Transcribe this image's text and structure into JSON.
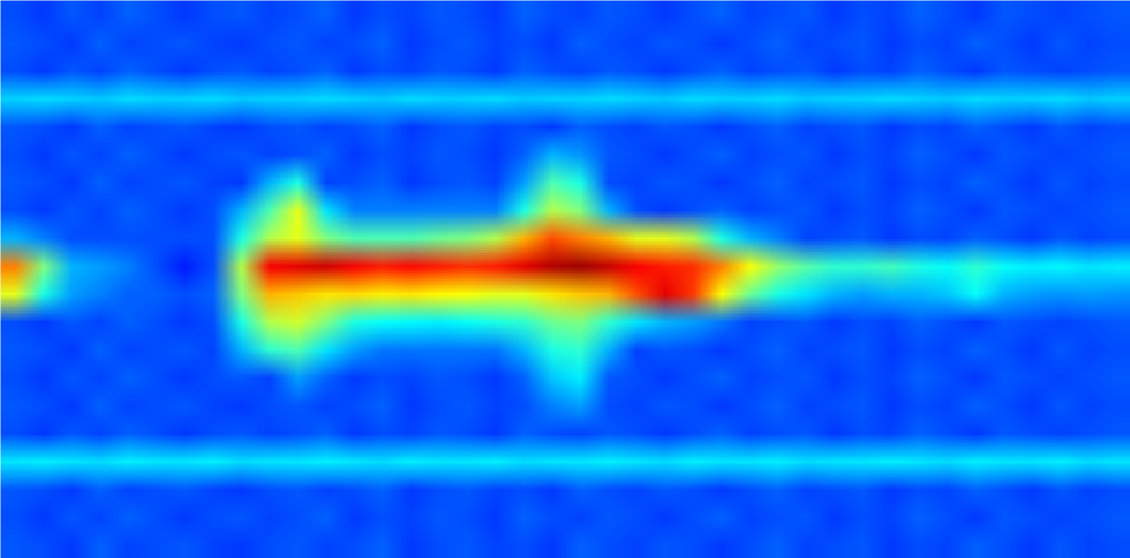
{
  "chart_data": {
    "type": "heatmap",
    "tick_labels": false,
    "zlim": [
      0,
      1
    ],
    "cells": [
      [
        0.2,
        0.18,
        0.21,
        0.19,
        0.22,
        0.2,
        0.18,
        0.2,
        0.21,
        0.19,
        0.2,
        0.22,
        0.18,
        0.2,
        0.19,
        0.21,
        0.2,
        0.18,
        0.22,
        0.2,
        0.19,
        0.21,
        0.2,
        0.18,
        0.2,
        0.22,
        0.19,
        0.2,
        0.21,
        0.18,
        0.2,
        0.19,
        0.22,
        0.2,
        0.18,
        0.21,
        0.2,
        0.19,
        0.2,
        0.21
      ],
      [
        0.21,
        0.2,
        0.18,
        0.22,
        0.19,
        0.2,
        0.21,
        0.19,
        0.18,
        0.2,
        0.21,
        0.19,
        0.2,
        0.22,
        0.18,
        0.2,
        0.21,
        0.19,
        0.2,
        0.18,
        0.22,
        0.2,
        0.19,
        0.21,
        0.2,
        0.18,
        0.2,
        0.22,
        0.19,
        0.2,
        0.21,
        0.18,
        0.2,
        0.19,
        0.22,
        0.2,
        0.18,
        0.21,
        0.19,
        0.2
      ],
      [
        0.2,
        0.18,
        0.21,
        0.19,
        0.22,
        0.2,
        0.18,
        0.2,
        0.21,
        0.19,
        0.2,
        0.22,
        0.18,
        0.2,
        0.19,
        0.21,
        0.2,
        0.18,
        0.22,
        0.2,
        0.19,
        0.21,
        0.2,
        0.18,
        0.2,
        0.22,
        0.19,
        0.2,
        0.21,
        0.18,
        0.2,
        0.19,
        0.22,
        0.2,
        0.18,
        0.21,
        0.2,
        0.19,
        0.2,
        0.21
      ],
      [
        0.33,
        0.34,
        0.33,
        0.32,
        0.34,
        0.33,
        0.33,
        0.34,
        0.32,
        0.33,
        0.33,
        0.34,
        0.33,
        0.32,
        0.34,
        0.33,
        0.33,
        0.34,
        0.32,
        0.33,
        0.33,
        0.34,
        0.33,
        0.32,
        0.34,
        0.33,
        0.33,
        0.34,
        0.32,
        0.33,
        0.33,
        0.34,
        0.33,
        0.32,
        0.34,
        0.33,
        0.33,
        0.34,
        0.32,
        0.33
      ],
      [
        0.21,
        0.2,
        0.18,
        0.22,
        0.19,
        0.2,
        0.21,
        0.19,
        0.18,
        0.2,
        0.21,
        0.19,
        0.2,
        0.22,
        0.18,
        0.2,
        0.21,
        0.19,
        0.2,
        0.18,
        0.22,
        0.2,
        0.19,
        0.21,
        0.2,
        0.18,
        0.2,
        0.22,
        0.19,
        0.2,
        0.21,
        0.18,
        0.2,
        0.19,
        0.22,
        0.2,
        0.18,
        0.21,
        0.19,
        0.2
      ],
      [
        0.2,
        0.18,
        0.21,
        0.19,
        0.22,
        0.2,
        0.18,
        0.2,
        0.21,
        0.19,
        0.2,
        0.22,
        0.18,
        0.2,
        0.19,
        0.21,
        0.2,
        0.18,
        0.22,
        0.3,
        0.27,
        0.21,
        0.2,
        0.18,
        0.2,
        0.22,
        0.19,
        0.2,
        0.21,
        0.18,
        0.2,
        0.19,
        0.22,
        0.2,
        0.18,
        0.21,
        0.2,
        0.19,
        0.2,
        0.21
      ],
      [
        0.21,
        0.2,
        0.18,
        0.22,
        0.19,
        0.2,
        0.21,
        0.19,
        0.18,
        0.3,
        0.4,
        0.19,
        0.2,
        0.22,
        0.18,
        0.2,
        0.21,
        0.19,
        0.28,
        0.45,
        0.4,
        0.2,
        0.19,
        0.21,
        0.2,
        0.18,
        0.2,
        0.22,
        0.19,
        0.2,
        0.21,
        0.18,
        0.2,
        0.19,
        0.22,
        0.2,
        0.18,
        0.21,
        0.19,
        0.2
      ],
      [
        0.2,
        0.18,
        0.21,
        0.19,
        0.22,
        0.2,
        0.18,
        0.2,
        0.3,
        0.45,
        0.6,
        0.35,
        0.25,
        0.25,
        0.25,
        0.25,
        0.25,
        0.25,
        0.4,
        0.55,
        0.5,
        0.3,
        0.2,
        0.18,
        0.2,
        0.22,
        0.19,
        0.2,
        0.21,
        0.18,
        0.2,
        0.19,
        0.22,
        0.2,
        0.18,
        0.21,
        0.2,
        0.19,
        0.2,
        0.21
      ],
      [
        0.3,
        0.25,
        0.2,
        0.2,
        0.2,
        0.2,
        0.2,
        0.2,
        0.4,
        0.55,
        0.6,
        0.5,
        0.45,
        0.45,
        0.45,
        0.48,
        0.5,
        0.55,
        0.7,
        0.8,
        0.75,
        0.7,
        0.6,
        0.6,
        0.55,
        0.4,
        0.3,
        0.25,
        0.19,
        0.2,
        0.21,
        0.18,
        0.2,
        0.19,
        0.22,
        0.2,
        0.18,
        0.21,
        0.19,
        0.2
      ],
      [
        0.75,
        0.5,
        0.3,
        0.28,
        0.25,
        0.2,
        0.15,
        0.2,
        0.55,
        0.88,
        0.9,
        0.92,
        0.88,
        0.85,
        0.87,
        0.85,
        0.83,
        0.85,
        0.9,
        0.95,
        0.97,
        0.93,
        0.88,
        0.85,
        0.83,
        0.75,
        0.62,
        0.52,
        0.46,
        0.42,
        0.42,
        0.44,
        0.4,
        0.38,
        0.42,
        0.38,
        0.36,
        0.37,
        0.35,
        0.36
      ],
      [
        0.6,
        0.4,
        0.28,
        0.25,
        0.22,
        0.22,
        0.2,
        0.22,
        0.5,
        0.7,
        0.68,
        0.65,
        0.66,
        0.64,
        0.65,
        0.63,
        0.62,
        0.6,
        0.6,
        0.65,
        0.68,
        0.7,
        0.8,
        0.9,
        0.82,
        0.62,
        0.48,
        0.4,
        0.35,
        0.3,
        0.28,
        0.3,
        0.3,
        0.32,
        0.38,
        0.3,
        0.28,
        0.27,
        0.28,
        0.27
      ],
      [
        0.2,
        0.18,
        0.21,
        0.19,
        0.22,
        0.2,
        0.18,
        0.2,
        0.4,
        0.55,
        0.58,
        0.5,
        0.4,
        0.38,
        0.37,
        0.36,
        0.38,
        0.4,
        0.42,
        0.48,
        0.5,
        0.42,
        0.35,
        0.3,
        0.28,
        0.24,
        0.19,
        0.2,
        0.21,
        0.18,
        0.2,
        0.19,
        0.22,
        0.2,
        0.18,
        0.21,
        0.2,
        0.19,
        0.2,
        0.21
      ],
      [
        0.21,
        0.2,
        0.18,
        0.22,
        0.19,
        0.2,
        0.21,
        0.19,
        0.3,
        0.42,
        0.45,
        0.35,
        0.28,
        0.24,
        0.24,
        0.24,
        0.24,
        0.24,
        0.3,
        0.4,
        0.42,
        0.3,
        0.19,
        0.21,
        0.2,
        0.18,
        0.2,
        0.22,
        0.19,
        0.2,
        0.21,
        0.18,
        0.2,
        0.19,
        0.22,
        0.2,
        0.18,
        0.21,
        0.19,
        0.2
      ],
      [
        0.2,
        0.18,
        0.21,
        0.19,
        0.22,
        0.2,
        0.18,
        0.2,
        0.21,
        0.19,
        0.28,
        0.22,
        0.18,
        0.2,
        0.19,
        0.21,
        0.2,
        0.18,
        0.22,
        0.32,
        0.36,
        0.21,
        0.2,
        0.18,
        0.2,
        0.22,
        0.19,
        0.2,
        0.21,
        0.18,
        0.2,
        0.19,
        0.22,
        0.2,
        0.18,
        0.21,
        0.2,
        0.19,
        0.2,
        0.21
      ],
      [
        0.21,
        0.2,
        0.18,
        0.22,
        0.19,
        0.2,
        0.21,
        0.19,
        0.18,
        0.2,
        0.21,
        0.19,
        0.2,
        0.22,
        0.18,
        0.2,
        0.21,
        0.19,
        0.2,
        0.25,
        0.28,
        0.2,
        0.19,
        0.21,
        0.2,
        0.18,
        0.2,
        0.22,
        0.19,
        0.2,
        0.21,
        0.18,
        0.2,
        0.19,
        0.22,
        0.2,
        0.18,
        0.21,
        0.19,
        0.2
      ],
      [
        0.2,
        0.18,
        0.21,
        0.19,
        0.22,
        0.2,
        0.18,
        0.2,
        0.21,
        0.19,
        0.2,
        0.22,
        0.18,
        0.2,
        0.19,
        0.21,
        0.2,
        0.18,
        0.22,
        0.2,
        0.19,
        0.21,
        0.2,
        0.18,
        0.2,
        0.22,
        0.19,
        0.2,
        0.21,
        0.18,
        0.2,
        0.19,
        0.22,
        0.2,
        0.18,
        0.21,
        0.2,
        0.19,
        0.2,
        0.21
      ],
      [
        0.35,
        0.36,
        0.35,
        0.34,
        0.36,
        0.35,
        0.35,
        0.36,
        0.34,
        0.35,
        0.35,
        0.36,
        0.35,
        0.34,
        0.36,
        0.35,
        0.35,
        0.36,
        0.34,
        0.35,
        0.35,
        0.36,
        0.35,
        0.34,
        0.36,
        0.35,
        0.35,
        0.36,
        0.34,
        0.35,
        0.35,
        0.36,
        0.35,
        0.34,
        0.36,
        0.35,
        0.35,
        0.36,
        0.34,
        0.35
      ],
      [
        0.21,
        0.2,
        0.18,
        0.22,
        0.19,
        0.2,
        0.21,
        0.19,
        0.18,
        0.2,
        0.21,
        0.19,
        0.2,
        0.22,
        0.18,
        0.2,
        0.21,
        0.19,
        0.2,
        0.18,
        0.22,
        0.2,
        0.19,
        0.21,
        0.2,
        0.18,
        0.2,
        0.22,
        0.19,
        0.2,
        0.21,
        0.18,
        0.2,
        0.19,
        0.22,
        0.2,
        0.18,
        0.21,
        0.19,
        0.2
      ],
      [
        0.2,
        0.18,
        0.21,
        0.19,
        0.22,
        0.2,
        0.18,
        0.2,
        0.21,
        0.19,
        0.2,
        0.22,
        0.18,
        0.2,
        0.19,
        0.21,
        0.2,
        0.18,
        0.22,
        0.2,
        0.19,
        0.21,
        0.2,
        0.18,
        0.2,
        0.22,
        0.19,
        0.2,
        0.21,
        0.18,
        0.2,
        0.19,
        0.22,
        0.2,
        0.18,
        0.21,
        0.2,
        0.19,
        0.2,
        0.21
      ],
      [
        0.21,
        0.2,
        0.18,
        0.22,
        0.19,
        0.2,
        0.21,
        0.19,
        0.18,
        0.2,
        0.21,
        0.19,
        0.2,
        0.22,
        0.18,
        0.2,
        0.21,
        0.19,
        0.2,
        0.18,
        0.22,
        0.2,
        0.19,
        0.21,
        0.2,
        0.18,
        0.2,
        0.22,
        0.19,
        0.2,
        0.21,
        0.18,
        0.2,
        0.19,
        0.22,
        0.2,
        0.18,
        0.21,
        0.19,
        0.2
      ]
    ]
  }
}
